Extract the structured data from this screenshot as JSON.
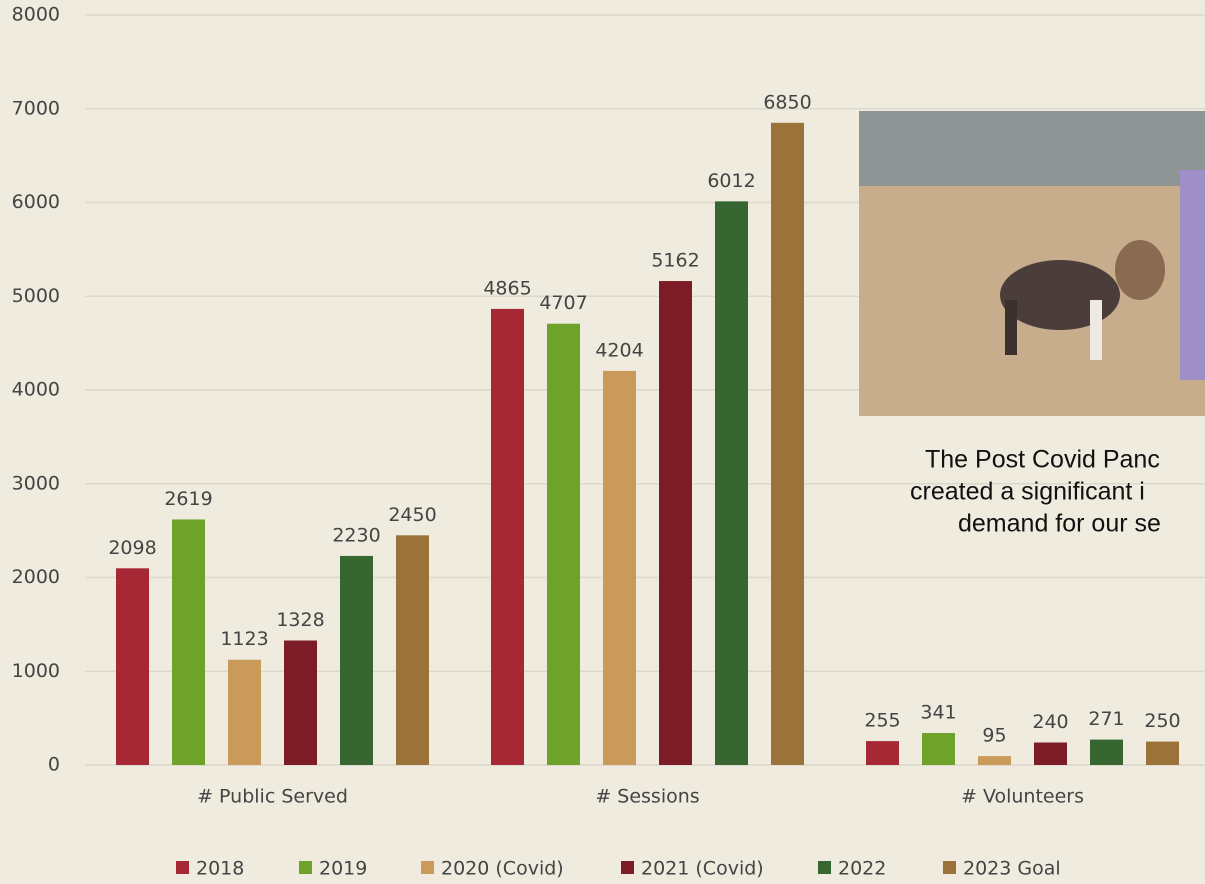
{
  "chart_data": {
    "type": "bar",
    "categories": [
      "# Public Served",
      "# Sessions",
      "# Volunteers"
    ],
    "series": [
      {
        "name": "2018",
        "color": "#a52834",
        "values": [
          2098,
          4865,
          255
        ]
      },
      {
        "name": "2019",
        "color": "#6ea22a",
        "values": [
          2619,
          4707,
          341
        ]
      },
      {
        "name": "2020 (Covid)",
        "color": "#c99a59",
        "values": [
          1123,
          4204,
          95
        ]
      },
      {
        "name": "2021 (Covid)",
        "color": "#7c1c26",
        "values": [
          1328,
          5162,
          240
        ]
      },
      {
        "name": "2022",
        "color": "#386630",
        "values": [
          2230,
          6012,
          271
        ]
      },
      {
        "name": "2023 Goal",
        "color": "#9b733a",
        "values": [
          2450,
          6850,
          250
        ]
      }
    ],
    "ylim": [
      0,
      8000
    ],
    "yticks": [
      0,
      1000,
      2000,
      3000,
      4000,
      5000,
      6000,
      7000,
      8000
    ],
    "grid": true,
    "legend": "bottom",
    "annotations": [
      "The Post Covid Panc",
      "created a significant i",
      "demand for our se"
    ]
  }
}
